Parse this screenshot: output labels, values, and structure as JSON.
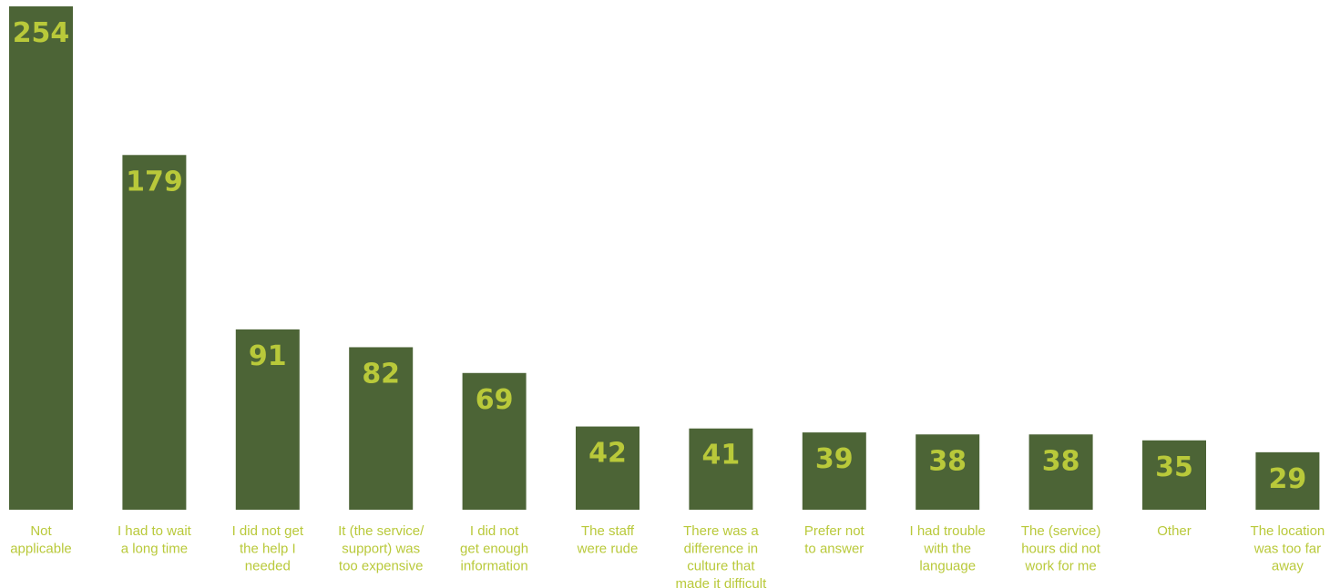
{
  "colors": {
    "bar": "#4c6436",
    "label": "#b9c93a",
    "background": "#ffffff"
  },
  "chart_data": {
    "type": "bar",
    "title": "",
    "xlabel": "",
    "ylabel": "",
    "grid": false,
    "ylim": [
      0,
      254
    ],
    "categories": [
      [
        "Not",
        "applicable"
      ],
      [
        "I had to wait",
        "a long time"
      ],
      [
        "I did not get",
        "the help I",
        "needed"
      ],
      [
        "It (the service/",
        "support) was",
        "too expensive"
      ],
      [
        "I did not",
        "get enough",
        "information"
      ],
      [
        "The staff",
        "were rude"
      ],
      [
        "There was a",
        "difference in",
        "culture that",
        "made it difficult"
      ],
      [
        "Prefer not",
        "to answer"
      ],
      [
        "I had trouble",
        "with the",
        "language"
      ],
      [
        "The (service)",
        "hours did not",
        "work for me"
      ],
      [
        "Other"
      ],
      [
        "The location",
        "was too far",
        "away"
      ]
    ],
    "values": [
      254,
      179,
      91,
      82,
      69,
      42,
      41,
      39,
      38,
      38,
      35,
      29
    ]
  }
}
